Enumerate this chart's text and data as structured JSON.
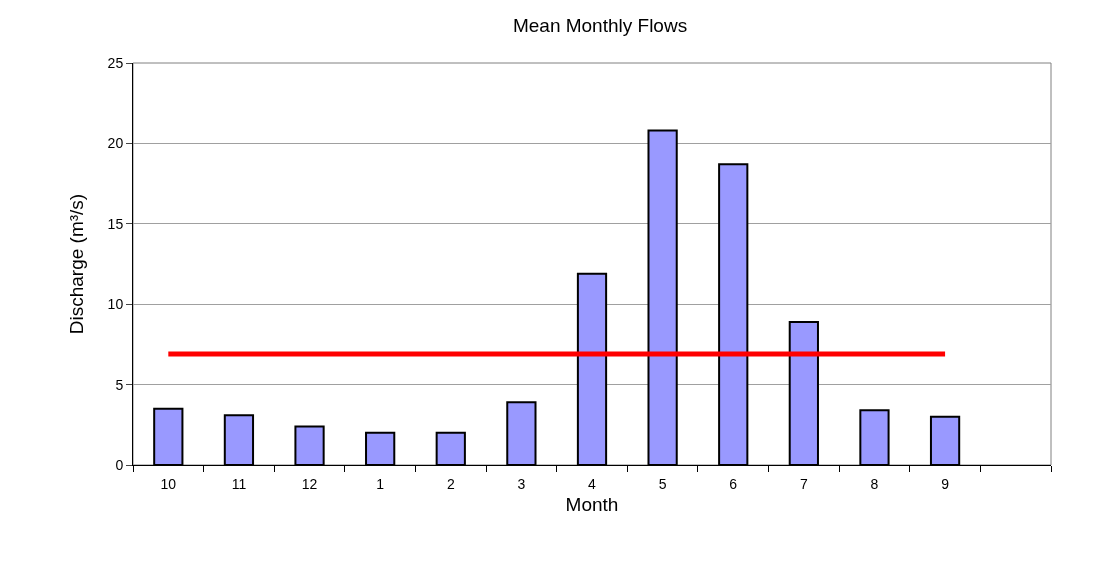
{
  "chart_data": {
    "type": "bar",
    "title": "Mean Monthly Flows",
    "xlabel": "Month",
    "ylabel": "Discharge (m³/s)",
    "categories": [
      "10",
      "11",
      "12",
      "1",
      "2",
      "3",
      "4",
      "5",
      "6",
      "7",
      "8",
      "9",
      null
    ],
    "series": [
      {
        "color": "#9999ff",
        "values": [
          3.5,
          3.1,
          2.4,
          2.0,
          2.0,
          3.9,
          11.9,
          20.8,
          18.7,
          8.9,
          3.4,
          3.0,
          null
        ]
      },
      {
        "type": "line",
        "color": "#ff0000",
        "values": [
          6.9,
          6.9,
          6.9,
          6.9,
          6.9,
          6.9,
          6.9,
          6.9,
          6.9,
          6.9,
          6.9,
          6.9,
          null
        ]
      }
    ],
    "ylim": [
      0,
      25
    ],
    "yticks": [
      0,
      5,
      10,
      15,
      20,
      25
    ],
    "grid": "y",
    "legend": false,
    "marker": "none",
    "line_style": "solid"
  }
}
